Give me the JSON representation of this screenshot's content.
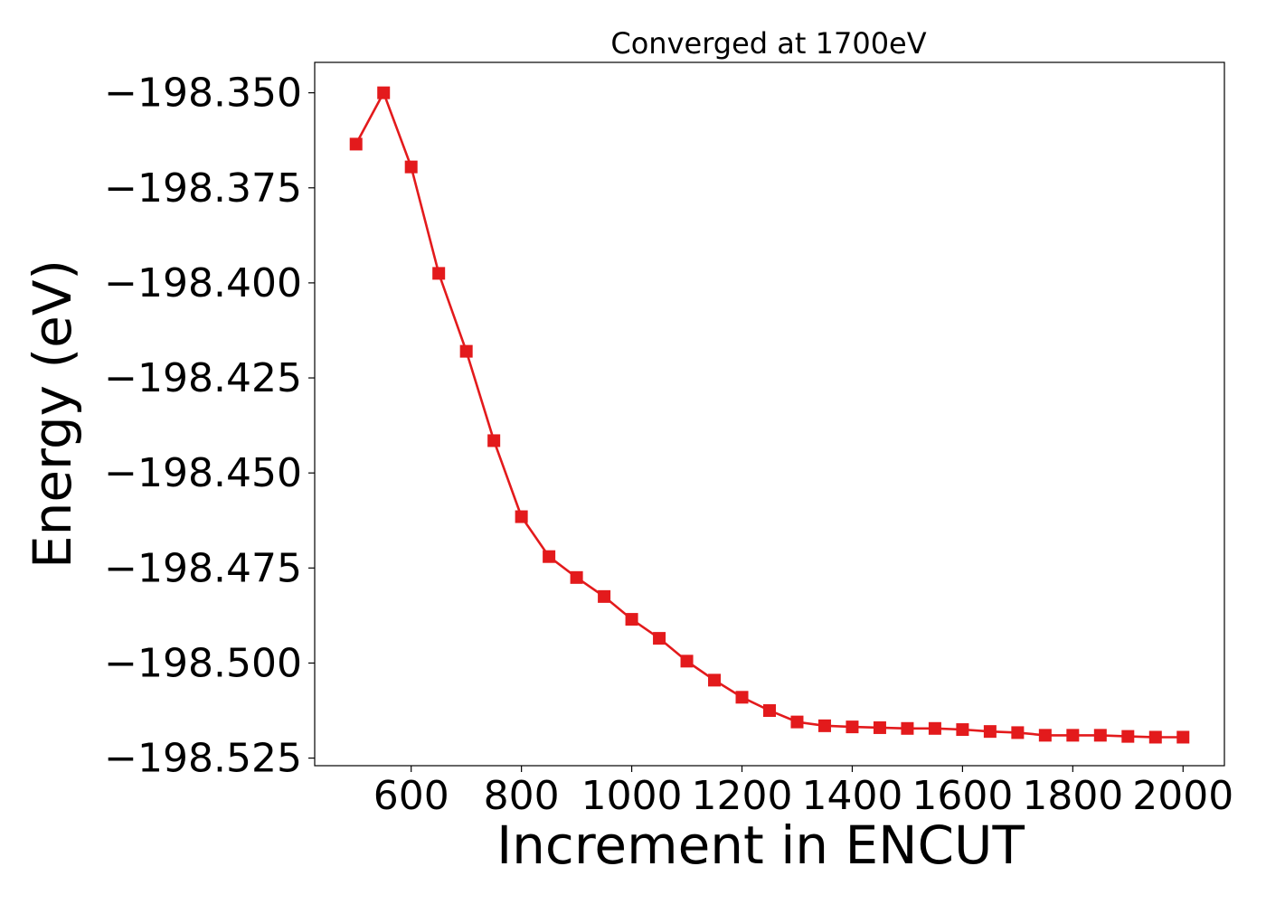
{
  "chart_data": {
    "type": "line",
    "title": "Converged at 1700eV",
    "xlabel": "Increment in ENCUT",
    "ylabel": "Energy (eV)",
    "xlim": [
      425,
      2075
    ],
    "ylim": [
      -198.527,
      -198.342
    ],
    "xticks": [
      600,
      800,
      1000,
      1200,
      1400,
      1600,
      1800,
      2000
    ],
    "yticks": [
      -198.35,
      -198.375,
      -198.4,
      -198.425,
      -198.45,
      -198.475,
      -198.5,
      -198.525
    ],
    "xtick_labels": [
      "600",
      "800",
      "1000",
      "1200",
      "1400",
      "1600",
      "1800",
      "2000"
    ],
    "ytick_labels": [
      "−198.350",
      "−198.375",
      "−198.400",
      "−198.425",
      "−198.450",
      "−198.475",
      "−198.500",
      "−198.525"
    ],
    "grid": false,
    "series": [
      {
        "color": "#e31a1c",
        "marker": "square",
        "x": [
          500,
          550,
          600,
          650,
          700,
          750,
          800,
          850,
          900,
          950,
          1000,
          1050,
          1100,
          1150,
          1200,
          1250,
          1300,
          1350,
          1400,
          1450,
          1500,
          1550,
          1600,
          1650,
          1700,
          1750,
          1800,
          1850,
          1900,
          1950,
          2000
        ],
        "y": [
          -198.3635,
          -198.35,
          -198.3695,
          -198.3975,
          -198.418,
          -198.4415,
          -198.4615,
          -198.472,
          -198.4775,
          -198.4825,
          -198.4885,
          -198.4935,
          -198.4995,
          -198.5045,
          -198.509,
          -198.5125,
          -198.5155,
          -198.5165,
          -198.5168,
          -198.517,
          -198.5172,
          -198.5172,
          -198.5175,
          -198.518,
          -198.5183,
          -198.519,
          -198.519,
          -198.519,
          -198.5193,
          -198.5195,
          -198.5195
        ]
      }
    ]
  }
}
